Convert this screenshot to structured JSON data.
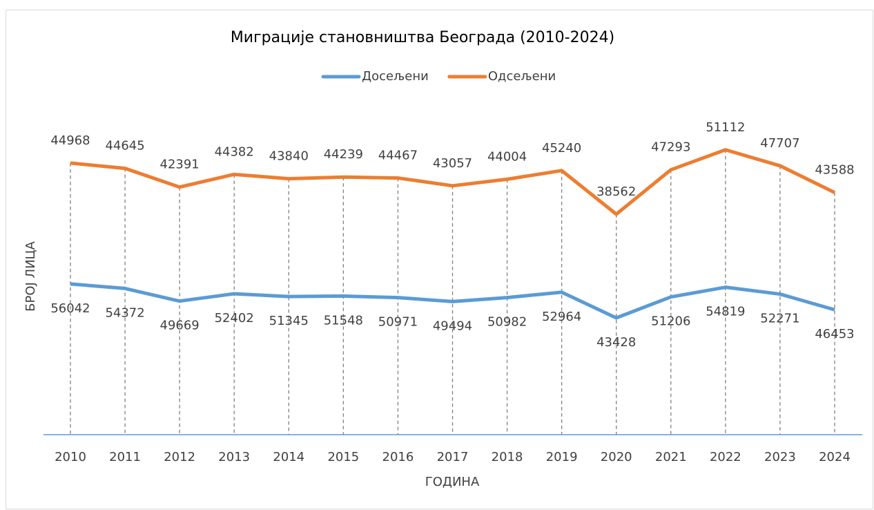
{
  "chart_data": {
    "type": "line",
    "stacked": true,
    "title": "Миграције становништва Београда (2010-2024)",
    "x_label": "ГОДИНА",
    "y_label": "БРОЈ ЛИЦА",
    "categories": [
      "2010",
      "2011",
      "2012",
      "2013",
      "2014",
      "2015",
      "2016",
      "2017",
      "2018",
      "2019",
      "2020",
      "2021",
      "2022",
      "2023",
      "2024"
    ],
    "series": [
      {
        "name": "Досељени",
        "color": "#5b9bd5",
        "values": [
          56042,
          54372,
          49669,
          52402,
          51345,
          51548,
          50971,
          49494,
          50982,
          52964,
          43428,
          51206,
          54819,
          52271,
          46453
        ]
      },
      {
        "name": "Одсељени",
        "color": "#ed7d31",
        "values": [
          44968,
          44645,
          42391,
          44382,
          43840,
          44239,
          44467,
          43057,
          44004,
          45240,
          38562,
          47293,
          51112,
          47707,
          43588
        ]
      }
    ],
    "ylim": [
      0,
      120000
    ],
    "drop_lines": true,
    "legend": "top"
  }
}
